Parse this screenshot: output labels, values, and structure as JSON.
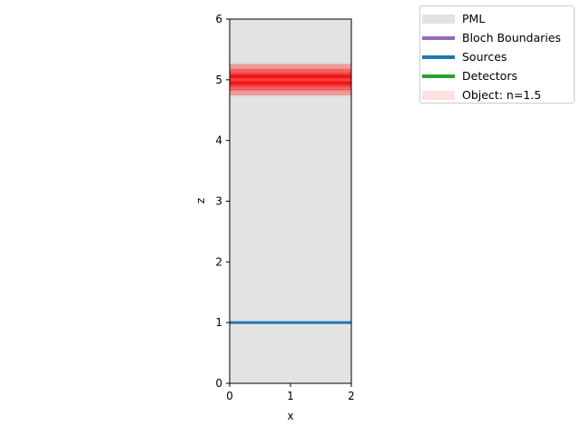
{
  "chart_data": {
    "type": "area",
    "title": "",
    "xlabel": "x",
    "ylabel": "z",
    "xlim": [
      0,
      2
    ],
    "ylim": [
      0,
      6
    ],
    "x_ticks": [
      "0",
      "1",
      "2"
    ],
    "y_ticks": [
      "0",
      "1",
      "2",
      "3",
      "4",
      "5",
      "6"
    ],
    "grid": false,
    "legend_position": "outside-top-right",
    "pml": {
      "x": [
        0,
        2
      ],
      "z": [
        0,
        6
      ],
      "color": "#e3e3e3"
    },
    "object": {
      "name": "Object: n=1.5",
      "x": [
        0,
        2
      ],
      "z_center": 5.0,
      "z_half_width": 0.28,
      "color": "#ff0000"
    },
    "sources": [
      {
        "name": "Sources",
        "x": [
          0,
          2
        ],
        "z": 1,
        "color": "#1f77b4"
      }
    ],
    "detectors": [],
    "bloch_boundaries": []
  },
  "legend": [
    {
      "label": "PML",
      "kind": "patch",
      "color": "#e3e3e3"
    },
    {
      "label": "Bloch Boundaries",
      "kind": "line",
      "color": "#9467bd"
    },
    {
      "label": "Sources",
      "kind": "line",
      "color": "#1f77b4"
    },
    {
      "label": "Detectors",
      "kind": "line",
      "color": "#2ca02c"
    },
    {
      "label": "Object: n=1.5",
      "kind": "patch",
      "color": "#fde1e1"
    }
  ]
}
